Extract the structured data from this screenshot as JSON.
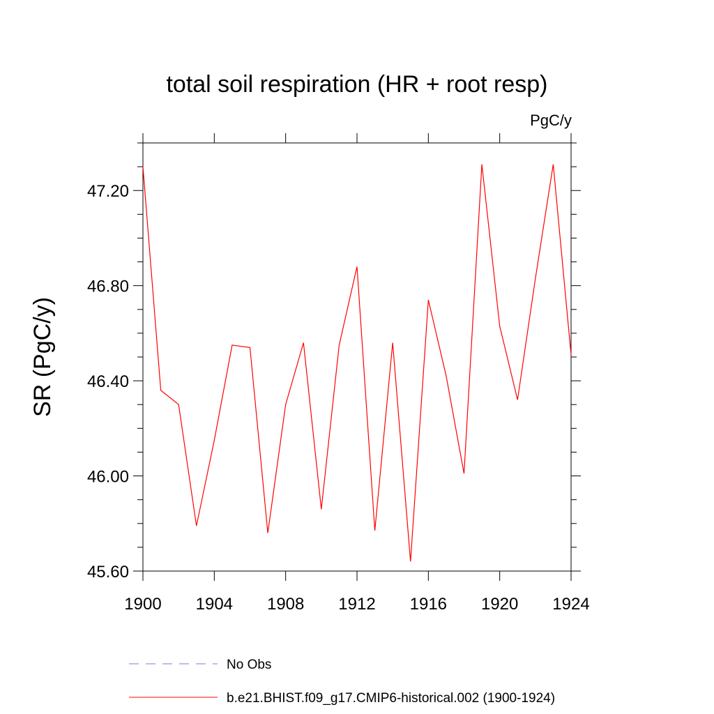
{
  "chart_data": {
    "type": "line",
    "title": "total soil respiration (HR + root resp)",
    "units_label": "PgC/y",
    "xlabel": "",
    "ylabel": "SR  (PgC/y)",
    "xlim": [
      1900,
      1924
    ],
    "ylim": [
      45.6,
      47.4
    ],
    "x_ticks": [
      1900,
      1904,
      1908,
      1912,
      1916,
      1920,
      1924
    ],
    "x_tick_labels": [
      "1900",
      "1904",
      "1908",
      "1912",
      "1916",
      "1920",
      "1924"
    ],
    "y_ticks": [
      45.6,
      46.0,
      46.4,
      46.8,
      47.2
    ],
    "y_tick_labels": [
      "45.60",
      "46.00",
      "46.40",
      "46.80",
      "47.20"
    ],
    "grid": false,
    "legend_position": "bottom",
    "series": [
      {
        "name": "b.e21.BHIST.f09_g17.CMIP6-historical.002 (1900-1924)",
        "color": "#ff0000",
        "style": "solid",
        "x": [
          1900,
          1901,
          1902,
          1903,
          1904,
          1905,
          1906,
          1907,
          1908,
          1909,
          1910,
          1911,
          1912,
          1913,
          1914,
          1915,
          1916,
          1917,
          1918,
          1919,
          1920,
          1921,
          1922,
          1923,
          1924
        ],
        "y": [
          47.3,
          46.36,
          46.3,
          45.79,
          46.15,
          46.55,
          46.54,
          45.76,
          46.3,
          46.56,
          45.86,
          46.55,
          46.88,
          45.77,
          46.56,
          45.64,
          46.74,
          46.42,
          46.01,
          47.31,
          46.63,
          46.32,
          46.83,
          47.31,
          46.51
        ]
      }
    ],
    "legend": [
      {
        "label": "No Obs",
        "color": "#7b7bd0",
        "style": "dashed"
      },
      {
        "label": "b.e21.BHIST.f09_g17.CMIP6-historical.002 (1900-1924)",
        "color": "#ff0000",
        "style": "solid"
      }
    ]
  }
}
